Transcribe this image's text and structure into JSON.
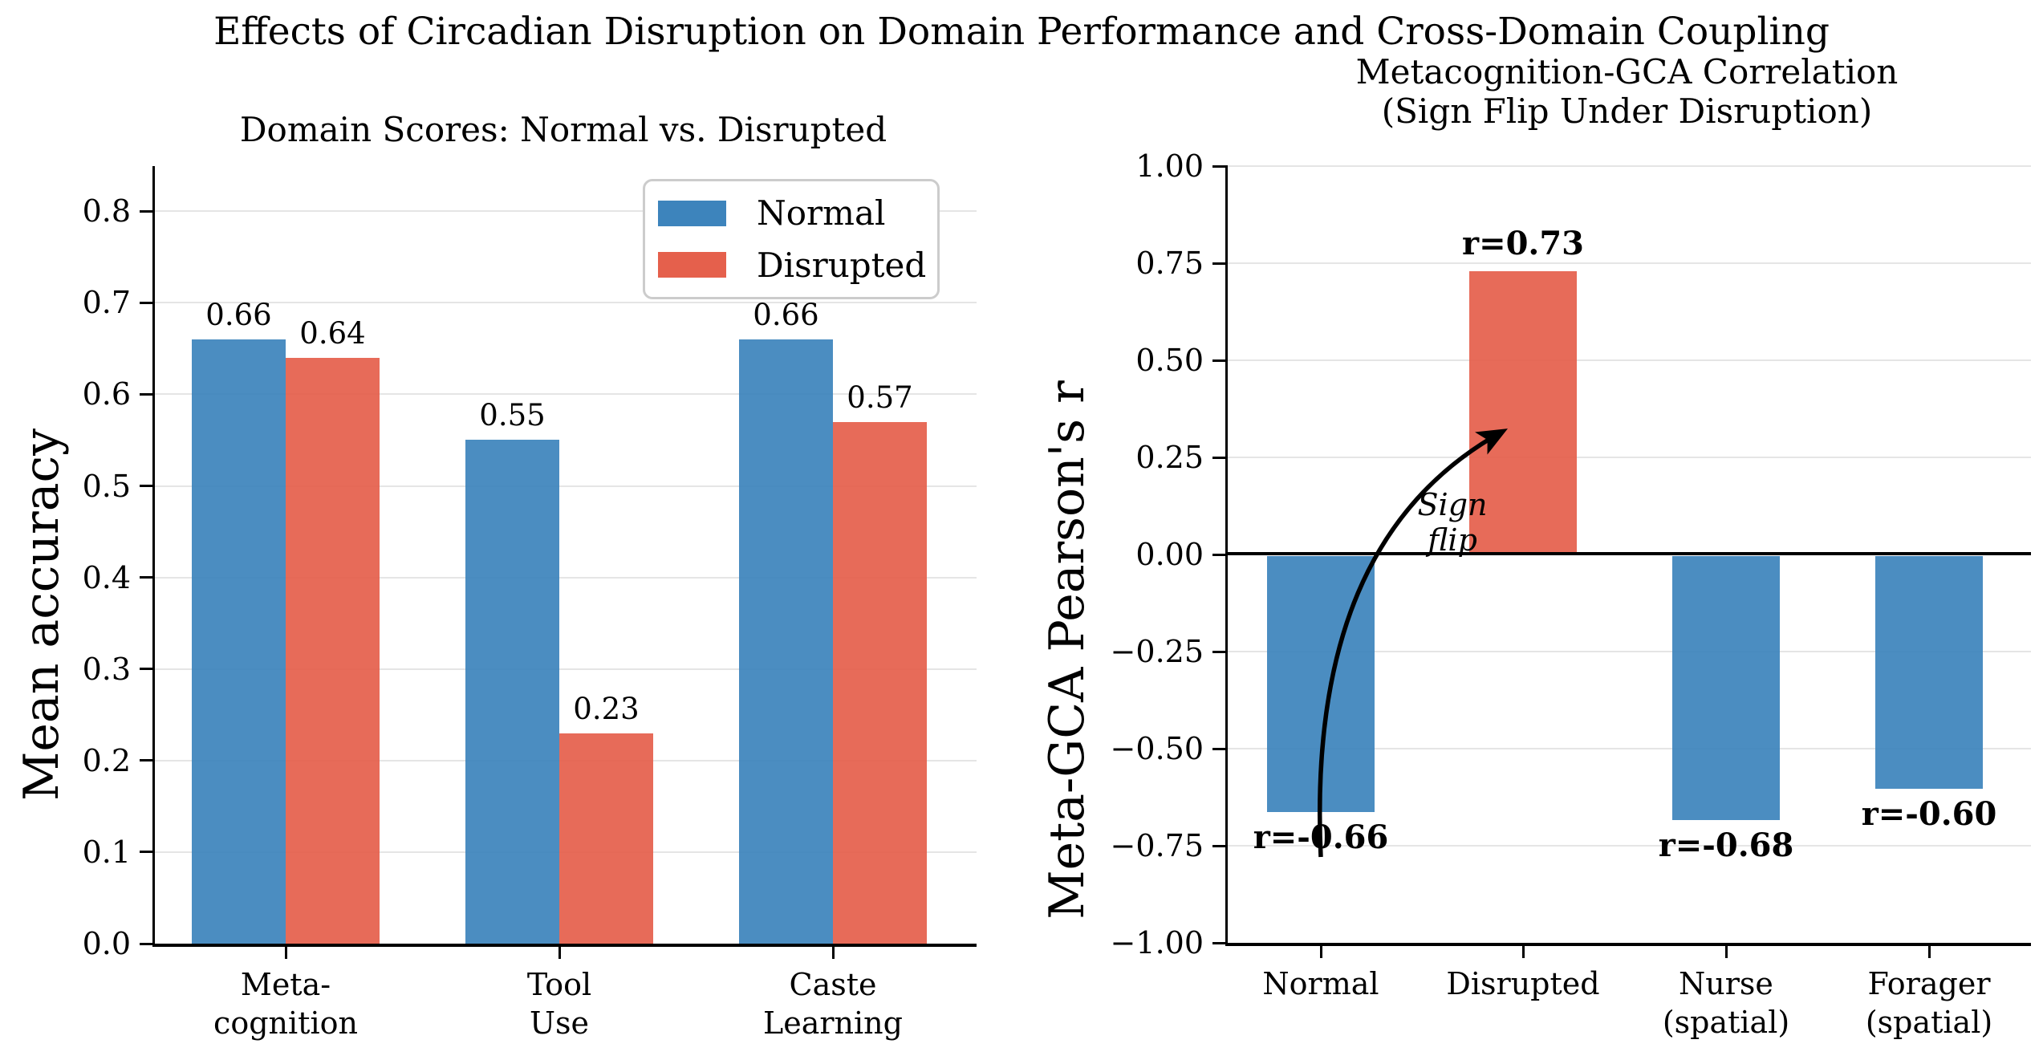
{
  "figure": {
    "title": "Effects of Circadian Disruption on Domain Performance and Cross-Domain Coupling"
  },
  "colors": {
    "normal": "#3D84BC",
    "disrupted": "#E5604C",
    "grid": "#E5E5E5",
    "spine": "#000000",
    "legend_border": "#CCCCCC"
  },
  "chart_data": [
    {
      "type": "bar",
      "title": "Domain Scores: Normal vs. Disrupted",
      "ylabel": "Mean accuracy",
      "categories": [
        "Meta-\ncognition",
        "Tool\nUse",
        "Caste\nLearning"
      ],
      "series": [
        {
          "name": "Normal",
          "color": "#3D84BC",
          "values": [
            0.66,
            0.55,
            0.66
          ],
          "value_labels": [
            "0.66",
            "0.55",
            "0.66"
          ]
        },
        {
          "name": "Disrupted",
          "color": "#E5604C",
          "values": [
            0.64,
            0.23,
            0.57
          ],
          "value_labels": [
            "0.64",
            "0.23",
            "0.57"
          ]
        }
      ],
      "ylim": [
        0,
        0.849
      ],
      "yticks": [
        {
          "v": 0.0,
          "label": "0.0"
        },
        {
          "v": 0.1,
          "label": "0.1"
        },
        {
          "v": 0.2,
          "label": "0.2"
        },
        {
          "v": 0.3,
          "label": "0.3"
        },
        {
          "v": 0.4,
          "label": "0.4"
        },
        {
          "v": 0.5,
          "label": "0.5"
        },
        {
          "v": 0.6,
          "label": "0.6"
        },
        {
          "v": 0.7,
          "label": "0.7"
        },
        {
          "v": 0.8,
          "label": "0.8"
        }
      ],
      "grid": true,
      "legend": {
        "position": "upper right",
        "items": [
          "Normal",
          "Disrupted"
        ]
      }
    },
    {
      "type": "bar",
      "title": "Metacognition-GCA Correlation\n(Sign Flip Under Disruption)",
      "ylabel": "Meta-GCA Pearson's r",
      "categories": [
        "Normal",
        "Disrupted",
        "Nurse\n(spatial)",
        "Forager\n(spatial)"
      ],
      "values": [
        -0.66,
        0.73,
        -0.68,
        -0.6
      ],
      "bar_colors": [
        "#3D84BC",
        "#E5604C",
        "#3D84BC",
        "#3D84BC"
      ],
      "bar_labels": [
        "r=-0.66",
        "r=0.73",
        "r=-0.68",
        "r=-0.60"
      ],
      "ylim": [
        -1.0,
        1.0
      ],
      "yticks": [
        {
          "v": 1.0,
          "label": "1.00"
        },
        {
          "v": 0.75,
          "label": "0.75"
        },
        {
          "v": 0.5,
          "label": "0.50"
        },
        {
          "v": 0.25,
          "label": "0.25"
        },
        {
          "v": 0.0,
          "label": "0.00"
        },
        {
          "v": -0.25,
          "label": "−0.25"
        },
        {
          "v": -0.5,
          "label": "−0.50"
        },
        {
          "v": -0.75,
          "label": "−0.75"
        },
        {
          "v": -1.0,
          "label": "−1.00"
        }
      ],
      "grid": true,
      "zero_line": true,
      "annotation": {
        "text": "Sign\nflip",
        "style": "italic"
      }
    }
  ]
}
